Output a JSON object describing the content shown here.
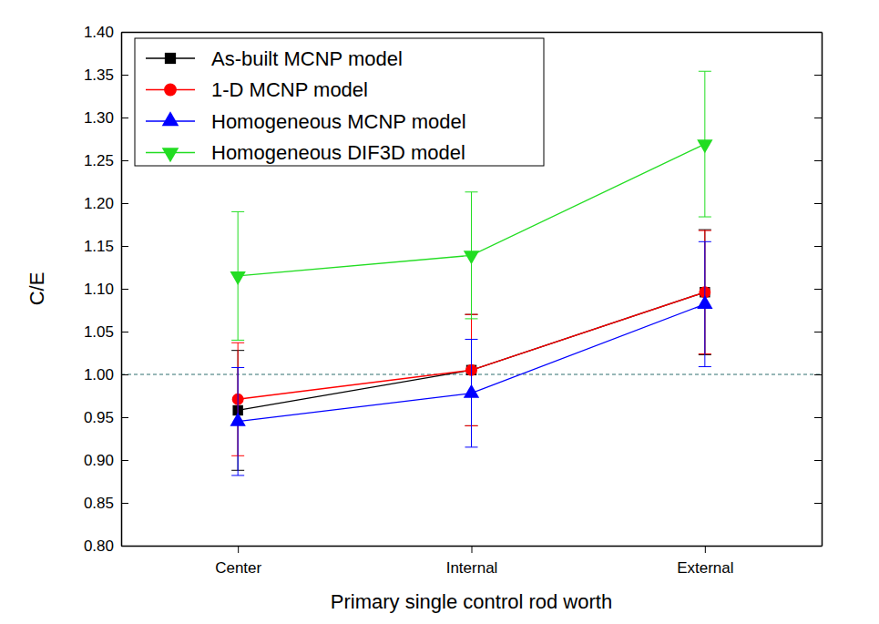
{
  "chart_data": {
    "type": "line",
    "x_label": "Primary single control rod worth",
    "y_label": "C/E",
    "categories": [
      "Center",
      "Internal",
      "External"
    ],
    "ylim": [
      0.8,
      1.4
    ],
    "yticks": [
      {
        "value": 0.8,
        "label": "0.80"
      },
      0.85,
      {
        "value": 0.9,
        "label": "0.90"
      },
      0.95,
      {
        "value": 1.0,
        "label": "1.00"
      },
      1.05,
      {
        "value": 1.1,
        "label": "1.10"
      },
      1.15,
      {
        "value": 1.2,
        "label": "1.20"
      },
      1.25,
      {
        "value": 1.3,
        "label": "1.30"
      },
      1.35,
      {
        "value": 1.4,
        "label": "1.40"
      }
    ],
    "reference_value": 1.0,
    "legend": "upper left",
    "series": [
      {
        "name": "As-built MCNP model",
        "color": "#000000",
        "marker": "square",
        "values": [
          0.958,
          1.005,
          1.096
        ],
        "errors": [
          0.07,
          0.065,
          0.073
        ]
      },
      {
        "name": "1-D MCNP model",
        "color": "#ff0000",
        "marker": "circle",
        "values": [
          0.971,
          1.005,
          1.096
        ],
        "errors": [
          0.066,
          0.065,
          0.072
        ]
      },
      {
        "name": "Homogeneous MCNP model",
        "color": "#0000ff",
        "marker": "triangle-up",
        "values": [
          0.945,
          0.978,
          1.082
        ],
        "errors": [
          0.063,
          0.063,
          0.073
        ]
      },
      {
        "name": "Homogeneous DIF3D model",
        "color": "#22dd22",
        "marker": "triangle-down",
        "values": [
          1.115,
          1.139,
          1.269
        ],
        "errors": [
          0.075,
          0.074,
          0.085
        ]
      }
    ]
  }
}
